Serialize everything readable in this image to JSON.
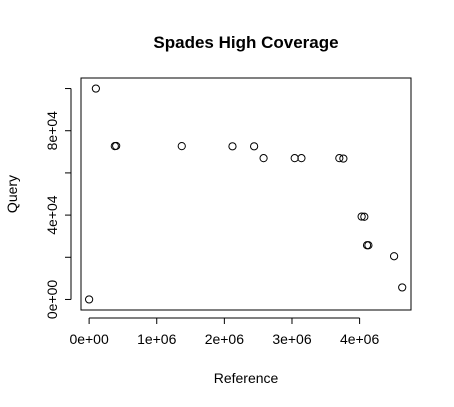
{
  "chart_data": {
    "type": "scatter",
    "title": "Spades High Coverage",
    "xlabel": "Reference",
    "ylabel": "Query",
    "xlim": [
      -120000,
      4760000
    ],
    "ylim": [
      -5000,
      105000
    ],
    "x_ticks": [
      {
        "value": 0,
        "label": "0e+00"
      },
      {
        "value": 1000000,
        "label": "1e+06"
      },
      {
        "value": 2000000,
        "label": "2e+06"
      },
      {
        "value": 3000000,
        "label": "3e+06"
      },
      {
        "value": 4000000,
        "label": "4e+06"
      }
    ],
    "y_ticks": [
      {
        "value": 0,
        "label": "0e+00"
      },
      {
        "value": 20000,
        "label": ""
      },
      {
        "value": 40000,
        "label": "4e+04"
      },
      {
        "value": 60000,
        "label": ""
      },
      {
        "value": 80000,
        "label": "8e+04"
      },
      {
        "value": 100000,
        "label": ""
      }
    ],
    "grid": false,
    "marker": "open-circle",
    "points": [
      {
        "x": 0,
        "y": 0
      },
      {
        "x": 100000,
        "y": 100000
      },
      {
        "x": 380000,
        "y": 72700
      },
      {
        "x": 400000,
        "y": 72800
      },
      {
        "x": 1370000,
        "y": 72700
      },
      {
        "x": 2120000,
        "y": 72600
      },
      {
        "x": 2440000,
        "y": 72600
      },
      {
        "x": 2580000,
        "y": 67000
      },
      {
        "x": 3040000,
        "y": 67000
      },
      {
        "x": 3140000,
        "y": 67000
      },
      {
        "x": 3700000,
        "y": 67000
      },
      {
        "x": 3760000,
        "y": 66800
      },
      {
        "x": 4030000,
        "y": 39300
      },
      {
        "x": 4070000,
        "y": 39200
      },
      {
        "x": 4110000,
        "y": 25700
      },
      {
        "x": 4130000,
        "y": 25700
      },
      {
        "x": 4510000,
        "y": 20500
      },
      {
        "x": 4630000,
        "y": 5700
      }
    ]
  }
}
